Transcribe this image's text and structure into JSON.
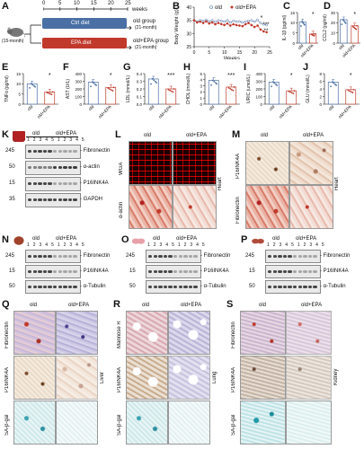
{
  "panels": {
    "A": {
      "label": "A",
      "weeks": [
        "0",
        "5",
        "10",
        "15",
        "20",
        "25"
      ],
      "weeks_unit": "weeks",
      "start_age": "(15-month)",
      "ctrl_diet": "Ctrl diet",
      "epa_diet": "EPA diet",
      "old_group": "old group",
      "old_group_age": "(21-month)",
      "epa_group": "old+EPA group",
      "epa_group_age": "(21-month)",
      "colors": {
        "ctrl": "#4a6fa5",
        "epa": "#c0392b"
      }
    },
    "B": {
      "label": "B",
      "ylabel": "Body Weight (g)",
      "xlabel": "Weeks",
      "yticks": [
        "25",
        "30",
        "35",
        "40"
      ],
      "xticks": [
        "0",
        "5",
        "10",
        "15",
        "20",
        "25"
      ],
      "legend_old": "old",
      "legend_epa": "old+EPA",
      "sig": [
        "*",
        "***",
        "**"
      ]
    },
    "C": {
      "label": "C",
      "ylabel": "IL-1β (pg/ml)",
      "yticks": [
        "0",
        "5",
        "10",
        "15"
      ],
      "sig": "*"
    },
    "D": {
      "label": "D",
      "ylabel": "CCL2 (pg/ml)",
      "yticks": [
        "0",
        "10",
        "20",
        "30"
      ],
      "sig": "*"
    },
    "E": {
      "label": "E",
      "ylabel": "TNFα (pg/ml)",
      "yticks": [
        "0",
        "5",
        "10",
        "15"
      ],
      "sig": "*"
    },
    "F": {
      "label": "F",
      "ylabel": "AST (U/L)",
      "yticks": [
        "0",
        "100",
        "200",
        "300",
        "400"
      ],
      "sig": "*"
    },
    "G": {
      "label": "G",
      "ylabel": "LDL (mmol/L)",
      "yticks": [
        "0.0",
        "0.1",
        "0.2",
        "0.3",
        "0.4"
      ],
      "sig": "***"
    },
    "H": {
      "label": "H",
      "ylabel": "CHOL (mmol/L)",
      "yticks": [
        "0",
        "1",
        "2",
        "3",
        "4",
        "5"
      ],
      "sig": "***"
    },
    "I": {
      "label": "I",
      "ylabel": "URIC (umol/L)",
      "yticks": [
        "0",
        "100",
        "200",
        "300",
        "400"
      ],
      "sig": "*"
    },
    "J": {
      "label": "J",
      "ylabel": "GLU (mmol/L)",
      "yticks": [
        "0",
        "2",
        "4",
        "6",
        "8"
      ],
      "sig": "*"
    },
    "K": {
      "label": "K",
      "group_old": "old",
      "group_epa": "old+EPA",
      "lanes": "1 2 3 4 5 1 2 3 4 5",
      "mw": [
        "245",
        "50",
        "15",
        "35"
      ],
      "targets": [
        "- Fibronectin",
        "- α-actin",
        "- P16INK4A",
        "- GAPDH"
      ]
    },
    "L": {
      "label": "L",
      "col_old": "old",
      "col_epa": "old+EPA",
      "row1": "WGA",
      "row2": "α-actin",
      "organ": "Heart"
    },
    "M": {
      "label": "M",
      "col_old": "old",
      "col_epa": "old+EPA",
      "row1": "P16INK4A",
      "row2": "Fibronectin",
      "organ": "Heart"
    },
    "N": {
      "label": "N",
      "group_old": "old",
      "group_epa": "old+EPA",
      "lanes": "1 2 3 4 5 1 2 3 4 5",
      "mw": [
        "245",
        "15",
        "50"
      ],
      "targets": [
        "- Fibronectin",
        "- P16INK4A",
        "- α-Tubulin"
      ]
    },
    "O": {
      "label": "O",
      "group_old": "old",
      "group_epa": "old+EPA",
      "lanes": "1 2 3 4 5 1 2 3 4 5",
      "mw": [
        "245",
        "15",
        "50"
      ],
      "targets": [
        "- Fibronectin",
        "- P16INK4A",
        "- α-Tubulin"
      ]
    },
    "P": {
      "label": "P",
      "group_old": "old",
      "group_epa": "old+EPA",
      "lanes": "1 2 3 4 5 1 2 3 4 5",
      "mw": [
        "245",
        "15",
        "50"
      ],
      "targets": [
        "- Fibronectin",
        "- P16INK4A",
        "- α-Tubulin"
      ]
    },
    "Q": {
      "label": "Q",
      "col_old": "old",
      "col_epa": "old+EPA",
      "rows": [
        "Fibronectin",
        "P16INK4A",
        "SA-β-gal"
      ],
      "organ": "Liver"
    },
    "R": {
      "label": "R",
      "col_old": "old",
      "col_epa": "old+EPA",
      "rows": [
        "Mannose R",
        "P16INK4A",
        "SA-β-gal"
      ],
      "organ": "Lung"
    },
    "S": {
      "label": "S",
      "col_old": "old",
      "col_epa": "old+EPA",
      "rows": [
        "Fibronectin",
        "P16INK4A",
        "SA-β-gal"
      ],
      "organ": "Kidney"
    }
  },
  "chart_data": [
    {
      "type": "line",
      "panel": "B",
      "ylabel": "Body Weight (g)",
      "xlabel": "Weeks",
      "ylim": [
        25,
        40
      ],
      "xlim": [
        0,
        25
      ],
      "legend": "top-right",
      "series": [
        {
          "name": "old",
          "color": "#4a6fa5",
          "x": [
            0,
            1,
            2,
            3,
            4,
            5,
            6,
            7,
            8,
            9,
            10,
            11,
            12,
            13,
            14,
            15,
            16,
            17,
            18,
            19,
            20,
            21,
            22,
            23,
            24
          ],
          "values": [
            35,
            34.5,
            35,
            34.8,
            35.2,
            34.6,
            35,
            34.4,
            35,
            34.8,
            34.5,
            35,
            34.2,
            34.8,
            34.5,
            34.6,
            34.2,
            34.5,
            34.8,
            35,
            34.5,
            35.2,
            34,
            33.5,
            33.2
          ]
        },
        {
          "name": "old+EPA",
          "color": "#c0392b",
          "x": [
            0,
            1,
            2,
            3,
            4,
            5,
            6,
            7,
            8,
            9,
            10,
            11,
            12,
            13,
            14,
            15,
            16,
            17,
            18,
            19,
            20,
            21,
            22,
            23,
            24
          ],
          "values": [
            35,
            34.2,
            34.5,
            34,
            34.6,
            33.8,
            34.2,
            33.5,
            34,
            33.6,
            33.2,
            33.8,
            33,
            33.5,
            33.2,
            33,
            32.8,
            33.5,
            34,
            33.2,
            32.5,
            33,
            31.5,
            30.8,
            30.5
          ]
        }
      ]
    },
    {
      "type": "bar",
      "panel": "C",
      "categories": [
        "old",
        "old+EPA"
      ],
      "values": [
        10.5,
        4.5
      ],
      "ylim": [
        0,
        15
      ],
      "colors": [
        "#4a6fa5",
        "#c0392b"
      ]
    },
    {
      "type": "bar",
      "panel": "D",
      "categories": [
        "old",
        "old+EPA"
      ],
      "values": [
        23,
        17
      ],
      "ylim": [
        0,
        30
      ],
      "colors": [
        "#4a6fa5",
        "#c0392b"
      ]
    },
    {
      "type": "bar",
      "panel": "E",
      "categories": [
        "old",
        "old+EPA"
      ],
      "values": [
        10,
        6
      ],
      "ylim": [
        0,
        15
      ],
      "colors": [
        "#4a6fa5",
        "#c0392b"
      ]
    },
    {
      "type": "bar",
      "panel": "F",
      "categories": [
        "old",
        "old+EPA"
      ],
      "values": [
        290,
        220
      ],
      "ylim": [
        0,
        400
      ],
      "colors": [
        "#4a6fa5",
        "#c0392b"
      ]
    },
    {
      "type": "bar",
      "panel": "G",
      "categories": [
        "old",
        "old+EPA"
      ],
      "values": [
        0.33,
        0.2
      ],
      "ylim": [
        0,
        0.4
      ],
      "colors": [
        "#4a6fa5",
        "#c0392b"
      ]
    },
    {
      "type": "bar",
      "panel": "H",
      "categories": [
        "old",
        "old+EPA"
      ],
      "values": [
        3.9,
        2.8
      ],
      "ylim": [
        0,
        5
      ],
      "colors": [
        "#4a6fa5",
        "#c0392b"
      ]
    },
    {
      "type": "bar",
      "panel": "I",
      "categories": [
        "old",
        "old+EPA"
      ],
      "values": [
        290,
        175
      ],
      "ylim": [
        0,
        400
      ],
      "colors": [
        "#4a6fa5",
        "#c0392b"
      ]
    },
    {
      "type": "bar",
      "panel": "J",
      "categories": [
        "old",
        "old+EPA"
      ],
      "values": [
        5.8,
        3.8
      ],
      "ylim": [
        0,
        8
      ],
      "colors": [
        "#4a6fa5",
        "#c0392b"
      ]
    }
  ]
}
